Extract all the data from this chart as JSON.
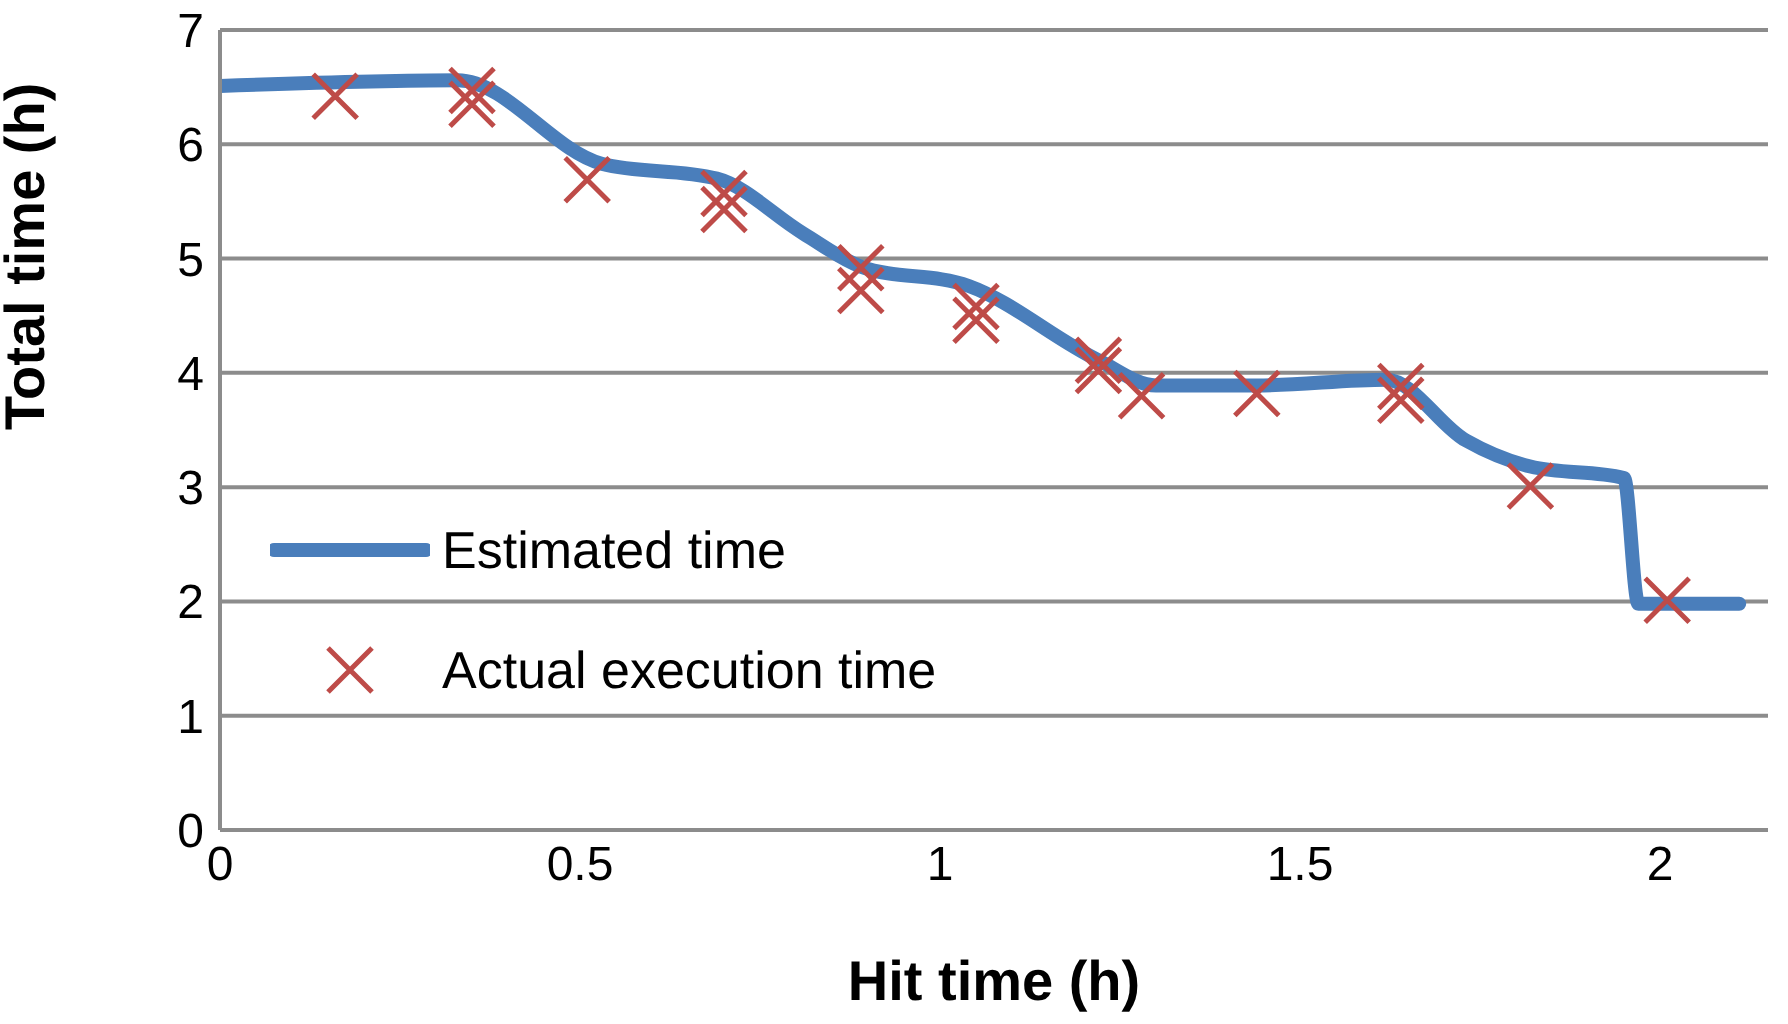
{
  "chart_data": {
    "type": "line",
    "xlabel": "Hit time (h)",
    "ylabel": "Total time (h)",
    "xlim": [
      0,
      2.15
    ],
    "xticks": [
      0,
      0.5,
      1,
      1.5,
      2
    ],
    "ylim": [
      0,
      7
    ],
    "yticks": [
      0,
      1,
      2,
      3,
      4,
      5,
      6,
      7
    ],
    "grid": "y",
    "legend": "left",
    "series": [
      {
        "name": "Estimated time",
        "color": "#4a7ebb",
        "marker": "none",
        "line_style": "solid",
        "x": [
          0,
          0.33,
          0.53,
          0.69,
          0.81,
          0.89,
          1.04,
          1.22,
          1.3,
          1.44,
          1.62,
          1.73,
          1.82,
          1.95,
          1.97,
          2.11
        ],
        "values": [
          6.51,
          6.56,
          5.83,
          5.7,
          5.22,
          4.93,
          4.76,
          4.11,
          3.89,
          3.89,
          3.94,
          3.41,
          3.18,
          3.08,
          1.98,
          1.98
        ]
      },
      {
        "name": "Actual execution time",
        "type": "scatter",
        "color": "#be4b48",
        "marker": "cross",
        "x": [
          0.16,
          0.35,
          0.35,
          0.51,
          0.7,
          0.7,
          0.89,
          0.89,
          1.05,
          1.05,
          1.22,
          1.22,
          1.28,
          1.44,
          1.64,
          1.64,
          1.82,
          2.01
        ],
        "values": [
          6.42,
          6.47,
          6.35,
          5.69,
          5.57,
          5.43,
          4.92,
          4.72,
          4.58,
          4.46,
          4.11,
          4.02,
          3.8,
          3.82,
          3.88,
          3.76,
          3.01,
          2.01
        ]
      }
    ]
  }
}
